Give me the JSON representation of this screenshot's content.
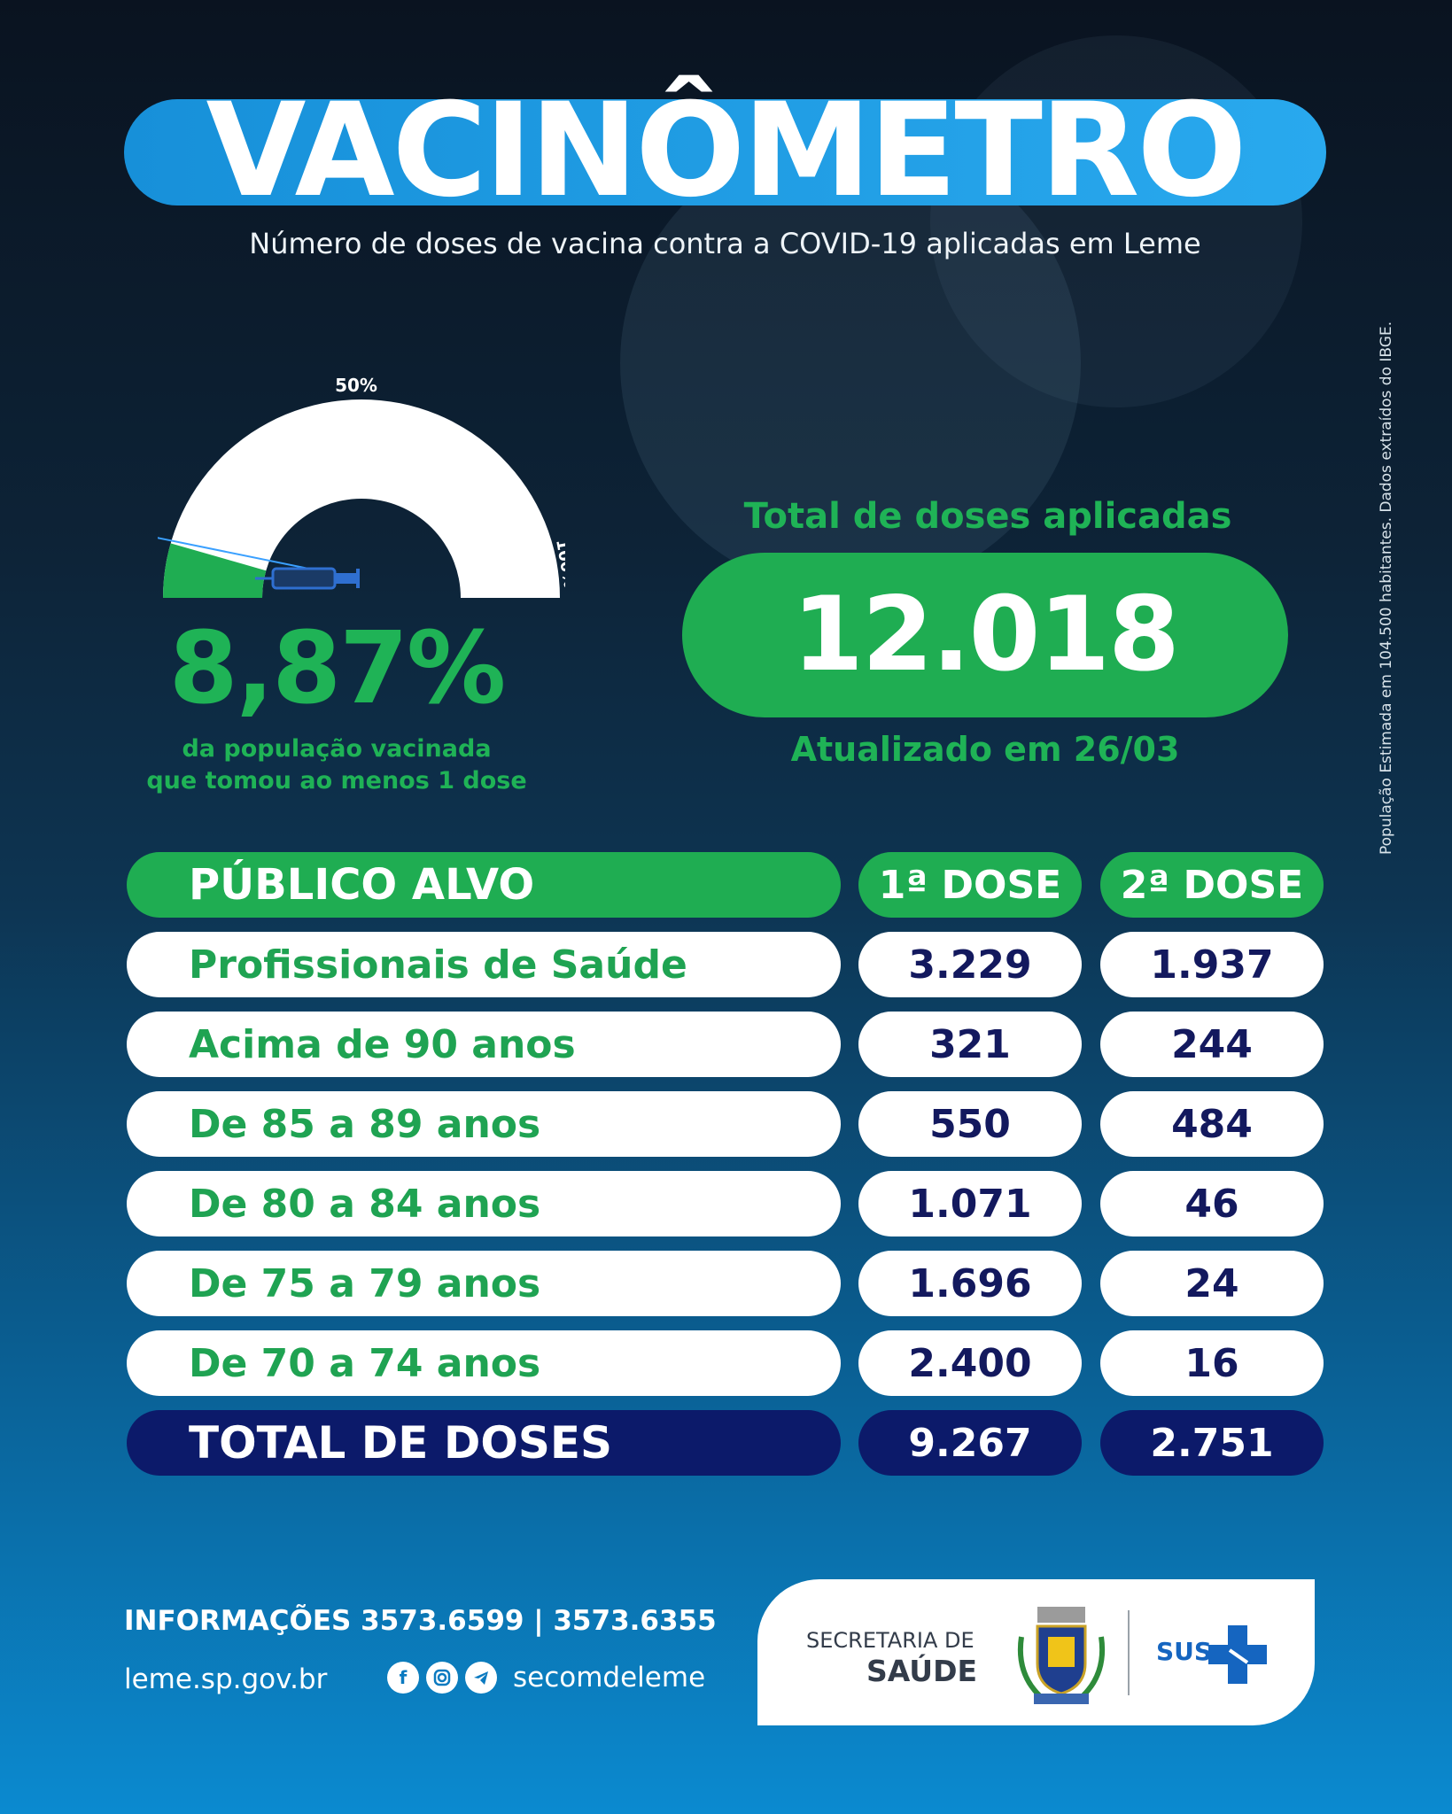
{
  "header": {
    "title": "VACINÔMETRO",
    "subtitle": "Número de doses de vacina contra a COVID-19 aplicadas em Leme"
  },
  "side_note": "População Estimada em 104.500 habitantes. Dados extraídos do IBGE.",
  "gauge": {
    "label_mid": "50%",
    "label_end": "100%",
    "fraction": 0.0887,
    "percent_text": "8,87%",
    "description_line1": "da população vacinada",
    "description_line2": "que tomou ao menos 1 dose"
  },
  "total": {
    "heading": "Total de doses aplicadas",
    "value": "12.018",
    "updated": "Atualizado em 26/03"
  },
  "table": {
    "headers": [
      "PÚBLICO ALVO",
      "1ª DOSE",
      "2ª DOSE"
    ],
    "rows": [
      {
        "group": "Profissionais de Saúde",
        "dose1": "3.229",
        "dose2": "1.937"
      },
      {
        "group": "Acima de 90 anos",
        "dose1": "321",
        "dose2": "244"
      },
      {
        "group": "De 85 a 89 anos",
        "dose1": "550",
        "dose2": "484"
      },
      {
        "group": "De 80 a 84 anos",
        "dose1": "1.071",
        "dose2": "46"
      },
      {
        "group": "De 75 a 79 anos",
        "dose1": "1.696",
        "dose2": "24"
      },
      {
        "group": "De 70 a 74 anos",
        "dose1": "2.400",
        "dose2": "16"
      }
    ],
    "total": {
      "label": "TOTAL DE DOSES",
      "dose1": "9.267",
      "dose2": "2.751"
    }
  },
  "footer": {
    "info": "INFORMAÇÕES 3573.6599  |  3573.6355",
    "website": "leme.sp.gov.br",
    "social_icons": [
      "facebook-icon",
      "instagram-icon",
      "telegram-icon"
    ],
    "social_handle": "secomdeleme",
    "secretaria_line1": "SECRETARIA DE",
    "secretaria_line2": "SAÚDE",
    "sus": "SUS"
  },
  "colors": {
    "green": "#1fad52",
    "navy": "#0c1a6a",
    "blue": "#1790d9"
  }
}
